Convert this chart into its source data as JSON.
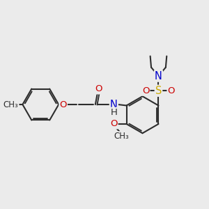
{
  "bg_color": "#ebebeb",
  "bond_color": "#2d2d2d",
  "bond_width": 1.5,
  "atom_colors": {
    "C": "#2d2d2d",
    "N": "#0000cc",
    "O": "#cc0000",
    "S": "#ccaa00",
    "H": "#2d2d2d"
  },
  "font_size": 9.5,
  "fig_size": [
    3.0,
    3.0
  ],
  "dpi": 100
}
